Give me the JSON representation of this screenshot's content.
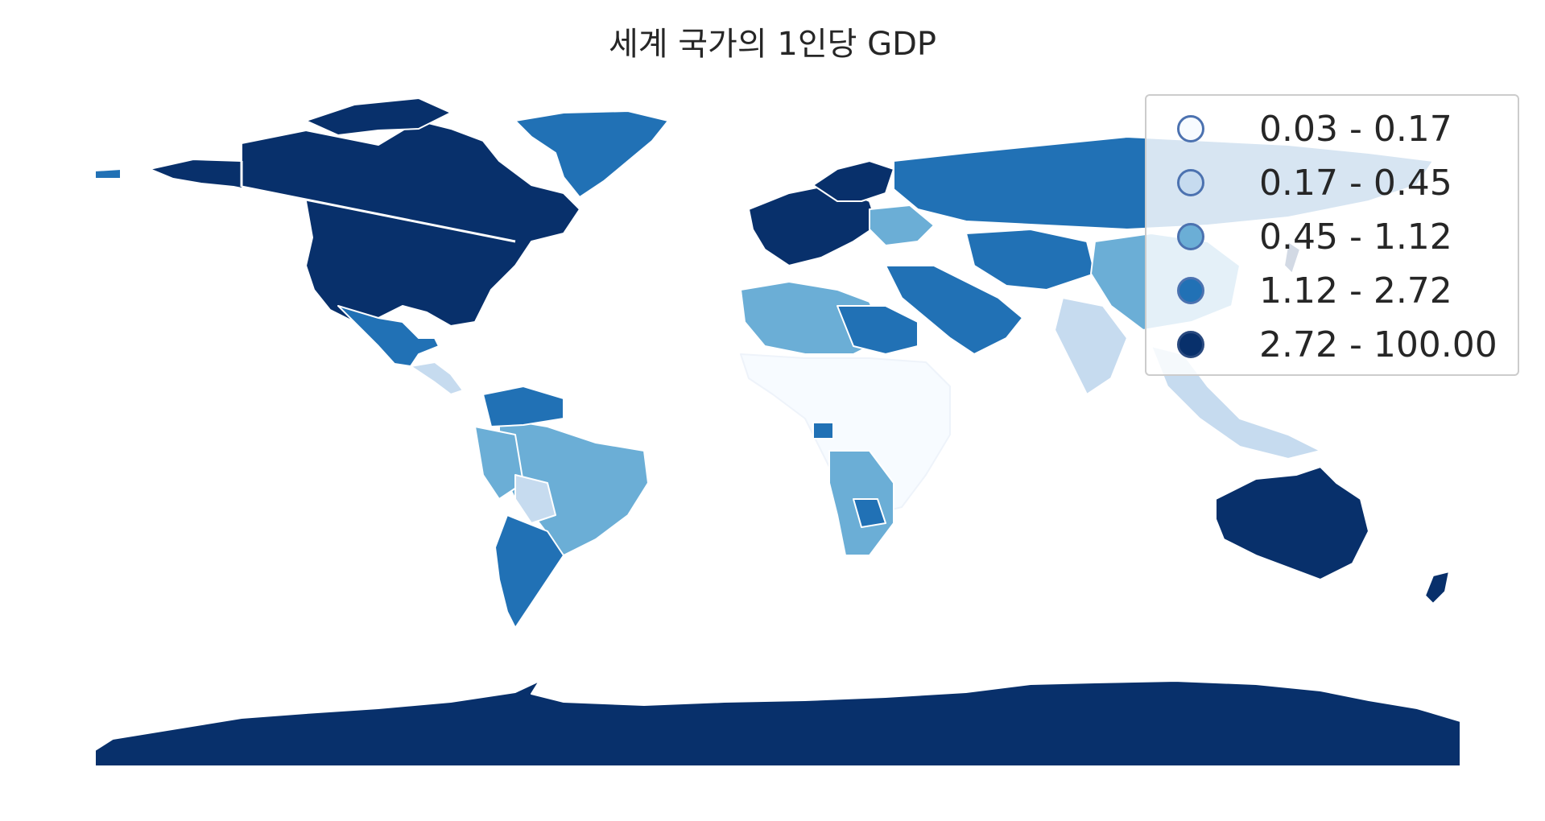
{
  "chart_data": {
    "type": "choropleth",
    "title": "세계 국가의 1인당 GDP",
    "classification": "quantiles",
    "legend_position": "top-right",
    "color_scheme": "Blues",
    "bins": [
      {
        "label": "0.03 - 0.17",
        "min": 0.03,
        "max": 0.17,
        "color": "#f7fbff"
      },
      {
        "label": "0.17 - 0.45",
        "min": 0.17,
        "max": 0.45,
        "color": "#c6dbef"
      },
      {
        "label": "0.45 - 1.12",
        "min": 0.45,
        "max": 1.12,
        "color": "#6baed6"
      },
      {
        "label": "1.12 - 2.72",
        "min": 1.12,
        "max": 2.72,
        "color": "#2171b5"
      },
      {
        "label": "2.72 - 100.00",
        "min": 2.72,
        "max": 100.0,
        "color": "#08306b"
      }
    ]
  }
}
